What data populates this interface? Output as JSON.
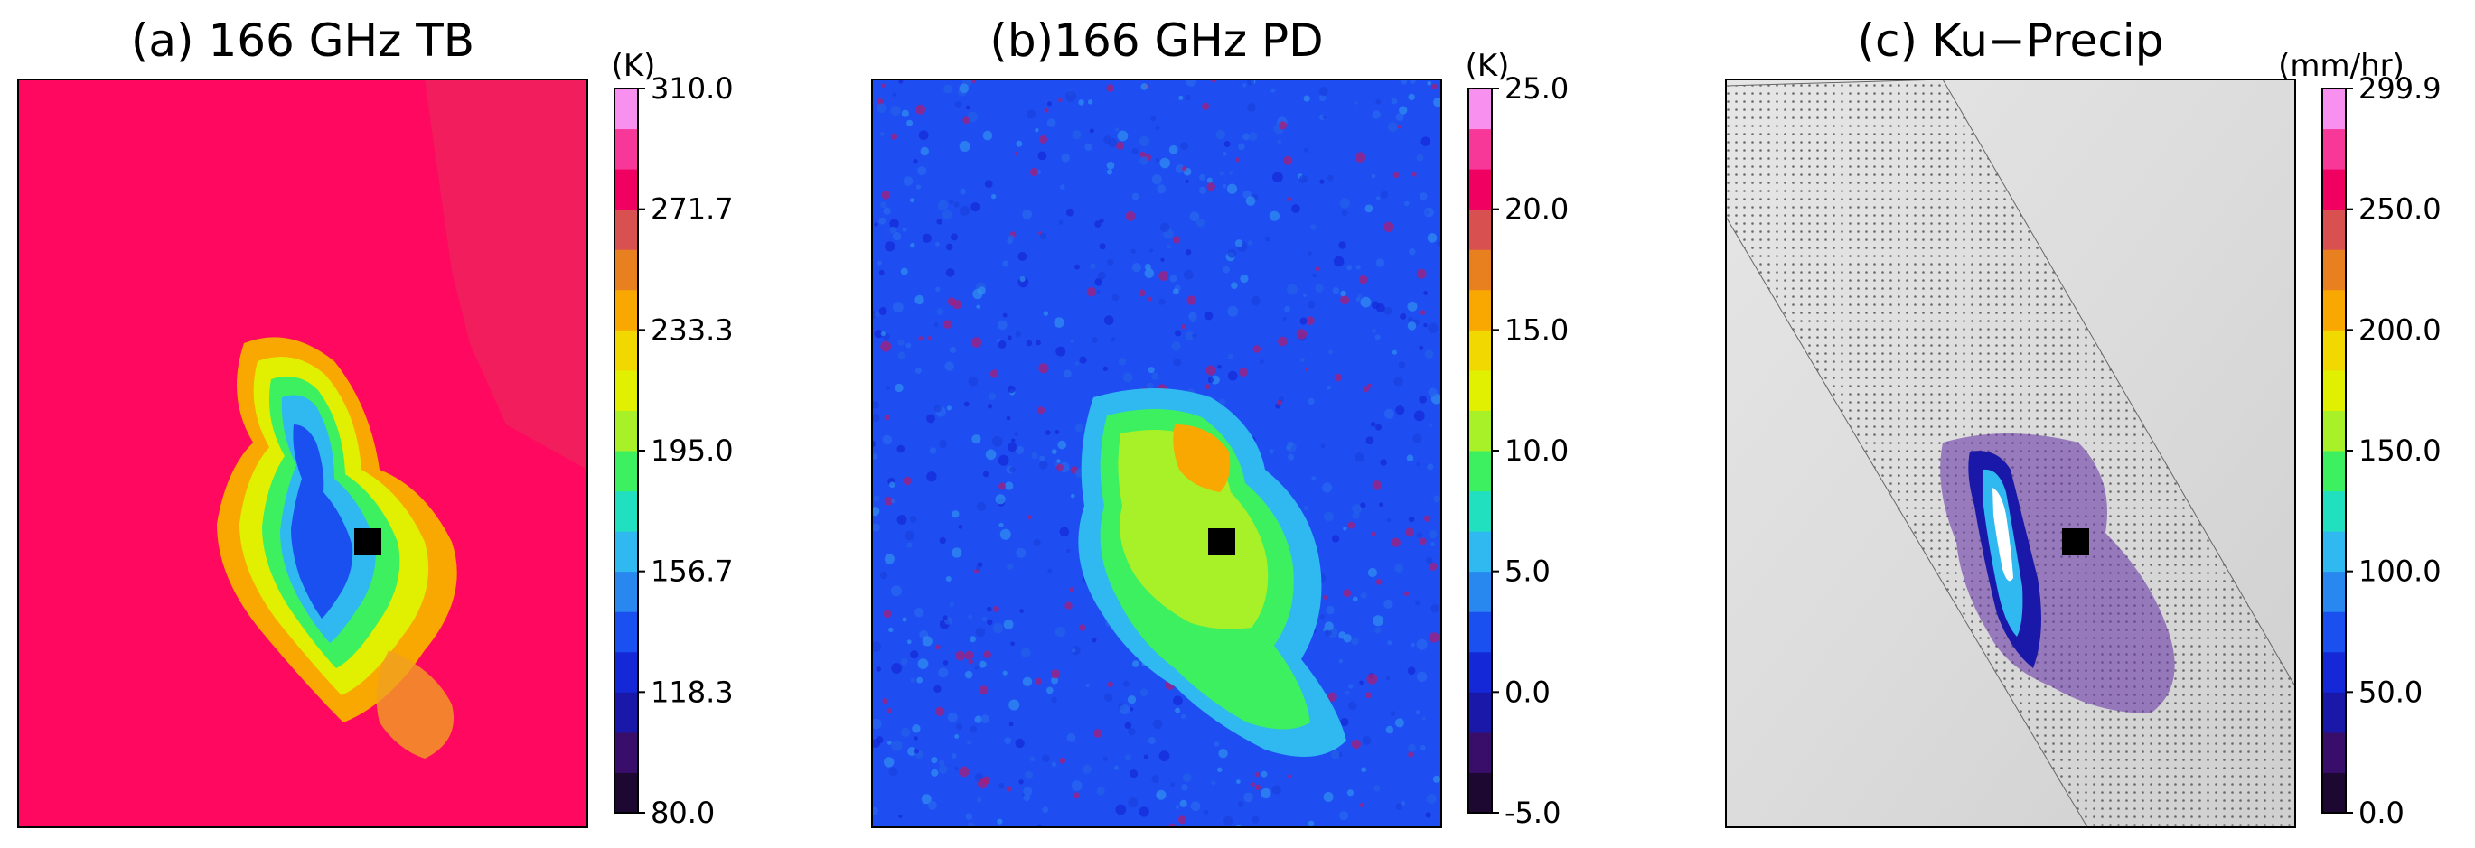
{
  "chart_data": [
    {
      "type": "heatmap",
      "title": "(a) 166 GHz TB",
      "colorbar": {
        "unit": "(K)",
        "min": 80.0,
        "max": 310.0,
        "tick_labels": [
          "80.0",
          "118.3",
          "156.7",
          "195.0",
          "233.3",
          "271.7",
          "310.0"
        ]
      },
      "background_value": 280,
      "field_shape": "dumbbell-shaped cold region centered on black square marker",
      "marker": "black square",
      "grid": false
    },
    {
      "type": "heatmap",
      "title": "(b)166 GHz PD",
      "colorbar": {
        "unit": "(K)",
        "min": -5.0,
        "max": 25.0,
        "tick_labels": [
          "-5.0",
          "0.0",
          "5.0",
          "10.0",
          "15.0",
          "20.0",
          "25.0"
        ]
      },
      "background_value": 1,
      "field_shape": "high polarization difference region matching cold region of panel (a)",
      "marker": "black square",
      "grid": false
    },
    {
      "type": "heatmap",
      "title": "(c) Ku−Precip",
      "colorbar": {
        "unit": "(mm/hr)",
        "min": 0.0,
        "max": 299.9,
        "tick_labels": [
          "0.0",
          "50.0",
          "100.0",
          "150.0",
          "200.0",
          "250.0",
          "299.9"
        ]
      },
      "background": "grey scale image with dotted radar swath",
      "field_shape": "precipitation cells inside diagonal swath",
      "marker": "black square",
      "grid": false
    }
  ],
  "colors": {
    "scale": [
      "#1c0830",
      "#380e6a",
      "#1a18a8",
      "#1428d8",
      "#1a50f0",
      "#2888f0",
      "#30b8f0",
      "#20e0c0",
      "#3cf060",
      "#a8f028",
      "#e0f000",
      "#f0d800",
      "#f8a800",
      "#e88020",
      "#d85050",
      "#f00060",
      "#f83898",
      "#f890f0"
    ],
    "background_a": "#ff0860",
    "background_b": "#1e4ef2",
    "marker": "#000000"
  }
}
